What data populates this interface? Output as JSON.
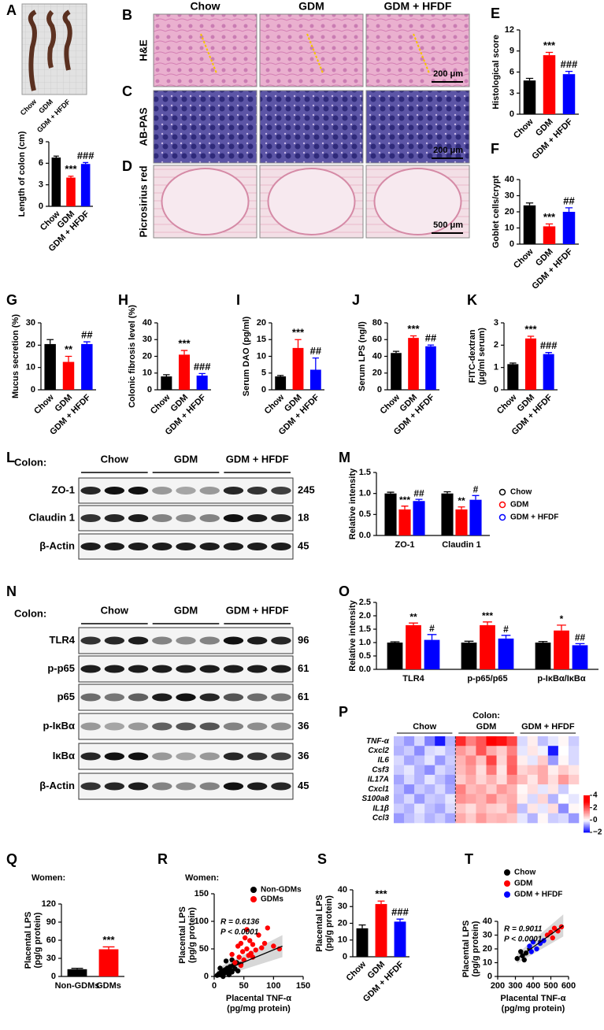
{
  "colon_photo": {
    "letter": "A",
    "labels": [
      "Chow",
      "GDM",
      "GDM + HFDF"
    ]
  },
  "histology": {
    "letters": [
      "B",
      "C",
      "D"
    ],
    "columns": [
      "Chow",
      "GDM",
      "GDM + HFDF"
    ],
    "rows": [
      "H&E",
      "AB-PAS",
      "Picrosirius red"
    ],
    "scale_bars": [
      "200 μm",
      "200 μm",
      "500 μm"
    ]
  },
  "blots": [
    {
      "letter": "L",
      "tissue": "Colon:",
      "groups": [
        "Chow",
        "GDM",
        "GDM + HFDF"
      ],
      "proteins": [
        "ZO-1",
        "Claudin 1",
        "β-Actin"
      ],
      "kda": [
        245,
        18,
        45
      ]
    },
    {
      "letter": "N",
      "tissue": "Colon:",
      "groups": [
        "Chow",
        "GDM",
        "GDM + HFDF"
      ],
      "proteins": [
        "TLR4",
        "p-p65",
        "p65",
        "p-IκBα",
        "IκBα",
        "β-Actin"
      ],
      "kda": [
        96,
        61,
        61,
        36,
        36,
        45
      ]
    }
  ],
  "chart_data": [
    {
      "type": "bar",
      "ylabel": "Length of colon (cm)",
      "categories": [
        "Chow",
        "GDM",
        "GDM + HFDF"
      ],
      "values": [
        6.8,
        4.0,
        5.9
      ],
      "errors": [
        0.2,
        0.2,
        0.2
      ],
      "colors": [
        "#000000",
        "#ff0000",
        "#0000ff"
      ],
      "annotations": [
        null,
        "***",
        "###"
      ],
      "ylim": [
        0,
        9
      ],
      "yticks": [
        0,
        3,
        6,
        9
      ]
    },
    {
      "type": "bar",
      "letter": "E",
      "ylabel": "Histological score",
      "categories": [
        "Chow",
        "GDM",
        "GDM + HFDF"
      ],
      "values": [
        4.8,
        8.4,
        5.7
      ],
      "errors": [
        0.3,
        0.4,
        0.4
      ],
      "colors": [
        "#000000",
        "#ff0000",
        "#0000ff"
      ],
      "annotations": [
        null,
        "***",
        "###"
      ],
      "ylim": [
        0,
        12
      ],
      "yticks": [
        0,
        3,
        6,
        9,
        12
      ]
    },
    {
      "type": "bar",
      "letter": "F",
      "ylabel": "Goblet cells/crypt",
      "categories": [
        "Chow",
        "GDM",
        "GDM + HFDF"
      ],
      "values": [
        24,
        11,
        20
      ],
      "errors": [
        1.5,
        1.5,
        2.5
      ],
      "colors": [
        "#000000",
        "#ff0000",
        "#0000ff"
      ],
      "annotations": [
        null,
        "***",
        "##"
      ],
      "ylim": [
        0,
        40
      ],
      "yticks": [
        0,
        10,
        20,
        30,
        40
      ]
    },
    {
      "type": "bar",
      "letter": "G",
      "ylabel": "Mucus secretion (%)",
      "categories": [
        "Chow",
        "GDM",
        "GDM + HFDF"
      ],
      "values": [
        20.5,
        12.5,
        20.5
      ],
      "errors": [
        2,
        2.5,
        1
      ],
      "colors": [
        "#000000",
        "#ff0000",
        "#0000ff"
      ],
      "annotations": [
        null,
        "**",
        "##"
      ],
      "ylim": [
        0,
        30
      ],
      "yticks": [
        0,
        10,
        20,
        30
      ]
    },
    {
      "type": "bar",
      "letter": "H",
      "ylabel": "Colonic fibrosis level (%)",
      "categories": [
        "Chow",
        "GDM",
        "GDM + HFDF"
      ],
      "values": [
        8,
        21,
        8.5
      ],
      "errors": [
        1,
        2.5,
        1.2
      ],
      "colors": [
        "#000000",
        "#ff0000",
        "#0000ff"
      ],
      "annotations": [
        null,
        "***",
        "###"
      ],
      "ylim": [
        0,
        40
      ],
      "yticks": [
        0,
        10,
        20,
        30,
        40
      ]
    },
    {
      "type": "bar",
      "letter": "I",
      "ylabel": "Serum DAO (pg/ml)",
      "categories": [
        "Chow",
        "GDM",
        "GDM + HFDF"
      ],
      "values": [
        4,
        12.5,
        6
      ],
      "errors": [
        0.3,
        2.5,
        3.5
      ],
      "colors": [
        "#000000",
        "#ff0000",
        "#0000ff"
      ],
      "annotations": [
        null,
        "***",
        "##"
      ],
      "ylim": [
        0,
        20
      ],
      "yticks": [
        0,
        5,
        10,
        15,
        20
      ]
    },
    {
      "type": "bar",
      "letter": "J",
      "ylabel": "Serum LPS (ng/l)",
      "categories": [
        "Chow",
        "GDM",
        "GDM + HFDF"
      ],
      "values": [
        44,
        62,
        52
      ],
      "errors": [
        2,
        2.5,
        1.5
      ],
      "colors": [
        "#000000",
        "#ff0000",
        "#0000ff"
      ],
      "annotations": [
        null,
        "***",
        "##"
      ],
      "ylim": [
        0,
        80
      ],
      "yticks": [
        0,
        20,
        40,
        60,
        80
      ]
    },
    {
      "type": "bar",
      "letter": "K",
      "ylabel": [
        "FITC-dextran",
        "(μg/ml serum)"
      ],
      "categories": [
        "Chow",
        "GDM",
        "GDM + HFDF"
      ],
      "values": [
        1.15,
        2.3,
        1.6
      ],
      "errors": [
        0.05,
        0.1,
        0.07
      ],
      "colors": [
        "#000000",
        "#ff0000",
        "#0000ff"
      ],
      "annotations": [
        null,
        "***",
        "###"
      ],
      "ylim": [
        0,
        3
      ],
      "yticks": [
        0,
        1,
        2,
        3
      ]
    },
    {
      "type": "grouped_bar",
      "letter": "M",
      "ylabel": "Relative intensity",
      "categories": [
        "ZO-1",
        "Claudin 1"
      ],
      "series": [
        {
          "name": "Chow",
          "color": "#000000",
          "values": [
            1.0,
            1.0
          ],
          "errors": [
            0.03,
            0.04
          ]
        },
        {
          "name": "GDM",
          "color": "#ff0000",
          "values": [
            0.62,
            0.62
          ],
          "errors": [
            0.08,
            0.06
          ],
          "annotations": [
            "***",
            "**"
          ]
        },
        {
          "name": "GDM + HFDF",
          "color": "#0000ff",
          "values": [
            0.82,
            0.85
          ],
          "errors": [
            0.04,
            0.1
          ],
          "annotations": [
            "##",
            "#"
          ]
        }
      ],
      "ylim": [
        0,
        1.5
      ],
      "yticks": [
        {
          "value": 0,
          "label": "0.0"
        },
        {
          "value": 0.5,
          "label": "0.5"
        },
        {
          "value": 1,
          "label": "1.0"
        },
        {
          "value": 1.5,
          "label": "1.5"
        }
      ],
      "legend": "right"
    },
    {
      "type": "grouped_bar",
      "letter": "O",
      "ylabel": "Relative intensity",
      "categories": [
        "TLR4",
        "p-p65/p65",
        "p-IκBα/IκBα"
      ],
      "series": [
        {
          "name": "Chow",
          "color": "#000000",
          "values": [
            1.0,
            1.0,
            1.0
          ],
          "errors": [
            0.03,
            0.05,
            0.04
          ]
        },
        {
          "name": "GDM",
          "color": "#ff0000",
          "values": [
            1.65,
            1.65,
            1.45
          ],
          "errors": [
            0.08,
            0.12,
            0.2
          ],
          "annotations": [
            "**",
            "***",
            "*"
          ]
        },
        {
          "name": "GDM + HFDF",
          "color": "#0000ff",
          "values": [
            1.1,
            1.15,
            0.9
          ],
          "errors": [
            0.2,
            0.12,
            0.06
          ],
          "annotations": [
            "#",
            "#",
            "##"
          ]
        }
      ],
      "ylim": [
        0,
        2.5
      ],
      "yticks": [
        {
          "value": 0,
          "label": "0.0"
        },
        {
          "value": 0.5,
          "label": "0.5"
        },
        {
          "value": 1,
          "label": "1.0"
        },
        {
          "value": 1.5,
          "label": "1.5"
        },
        {
          "value": 2,
          "label": "2.0"
        },
        {
          "value": 2.5,
          "label": "2.5"
        }
      ]
    },
    {
      "type": "heatmap",
      "letter": "P",
      "tissue": "Colon:",
      "groups": [
        "Chow",
        "GDM",
        "GDM + HFDF"
      ],
      "rows": [
        "TNF-α",
        "Cxcl2",
        "IL6",
        "Csf3",
        "IL17A",
        "Cxcl1",
        "S100a8",
        "IL1β",
        "Ccl3"
      ],
      "values": [
        [
          -0.5,
          -0.8,
          -0.3,
          -1.0,
          -1.8,
          -0.6,
          2.5,
          1.5,
          2.0,
          3.5,
          2.8,
          2.2,
          -0.3,
          0.2,
          -0.5,
          -0.2,
          0.1,
          -0.4
        ],
        [
          -0.6,
          -0.4,
          -0.9,
          -0.3,
          -0.2,
          -0.5,
          1.2,
          0.8,
          2.0,
          1.0,
          0.6,
          1.5,
          -0.2,
          0.3,
          -0.1,
          -1.8,
          0.0,
          -0.3
        ],
        [
          -0.3,
          -0.7,
          -0.5,
          -0.2,
          -0.8,
          -0.4,
          0.9,
          1.4,
          0.7,
          2.2,
          0.5,
          1.8,
          0.2,
          -0.2,
          0.6,
          -0.8,
          0.1,
          -0.3
        ],
        [
          -0.4,
          -0.2,
          -0.6,
          -0.9,
          -0.3,
          -0.5,
          0.8,
          1.2,
          0.4,
          1.6,
          0.3,
          1.9,
          0.5,
          0.7,
          1.0,
          0.2,
          0.6,
          0.3
        ],
        [
          -0.7,
          -0.3,
          -0.6,
          -0.2,
          -0.5,
          -0.8,
          0.6,
          1.0,
          0.5,
          0.9,
          0.4,
          1.3,
          0.8,
          0.3,
          1.0,
          0.4,
          1.2,
          0.6
        ],
        [
          -0.5,
          -0.9,
          -0.4,
          -0.6,
          -0.3,
          -0.7,
          1.5,
          0.8,
          1.0,
          0.6,
          1.2,
          0.9,
          0.1,
          0.4,
          -0.2,
          0.3,
          -0.4,
          0.0
        ],
        [
          -0.6,
          -0.3,
          -0.8,
          -0.4,
          -0.5,
          -0.2,
          1.3,
          1.1,
          0.9,
          1.4,
          0.8,
          1.0,
          0.2,
          -0.3,
          0.5,
          -0.6,
          0.0,
          -0.2
        ],
        [
          -0.4,
          -0.6,
          -0.2,
          -0.5,
          -0.7,
          -0.3,
          0.7,
          0.4,
          0.9,
          0.6,
          0.5,
          1.1,
          -0.5,
          0.3,
          -0.2,
          0.4,
          -0.9,
          0.1
        ],
        [
          -0.8,
          -0.5,
          -0.3,
          -0.6,
          -0.4,
          -0.7,
          1.0,
          0.6,
          1.2,
          0.8,
          0.9,
          0.7,
          -0.2,
          -0.6,
          0.1,
          -0.4,
          -0.3,
          -0.8
        ]
      ],
      "clim": [
        -2,
        4
      ],
      "cticks": [
        4,
        2,
        0,
        {
          "value": -2,
          "label": "−2"
        }
      ]
    },
    {
      "type": "bar",
      "letter": "Q",
      "subtitle": "Women:",
      "ylabel": [
        "Placental LPS",
        "(pg/g protein)"
      ],
      "categories": [
        "Non-GDMs",
        "GDMs"
      ],
      "values": [
        12,
        45
      ],
      "errors": [
        1.5,
        4
      ],
      "colors": [
        "#000000",
        "#ff0000"
      ],
      "annotations": [
        null,
        "***"
      ],
      "ylim": [
        0,
        120
      ],
      "yticks": [
        0,
        30,
        60,
        90,
        120
      ]
    },
    {
      "type": "scatter",
      "letter": "R",
      "subtitle": "Women:",
      "ylabel": [
        "Placental LPS",
        "(pg/g protein)"
      ],
      "xlabel": [
        "Placental TNF-α",
        "(pg/mg protein)"
      ],
      "series": [
        {
          "name": "Non-GDMs",
          "color": "#000000",
          "x": [
            5,
            8,
            10,
            12,
            14,
            15,
            17,
            18,
            20,
            22,
            24,
            25,
            27,
            28,
            30,
            32,
            35,
            38,
            40,
            45,
            10,
            15,
            20,
            25,
            30
          ],
          "y": [
            2,
            5,
            3,
            8,
            4,
            10,
            6,
            12,
            7,
            15,
            9,
            5,
            18,
            11,
            8,
            20,
            14,
            25,
            10,
            22,
            15,
            0,
            28,
            3,
            30
          ]
        },
        {
          "name": "GDMs",
          "color": "#ff0000",
          "x": [
            30,
            35,
            40,
            42,
            45,
            48,
            50,
            52,
            55,
            58,
            60,
            62,
            65,
            70,
            75,
            80,
            85,
            90,
            100,
            110,
            45,
            55,
            65
          ],
          "y": [
            40,
            25,
            55,
            35,
            60,
            45,
            30,
            70,
            50,
            38,
            65,
            42,
            58,
            48,
            75,
            52,
            60,
            88,
            55,
            50,
            20,
            85,
            35
          ]
        }
      ],
      "fit": {
        "x": [
          5,
          115
        ],
        "y": [
          6,
          55
        ]
      },
      "stats": [
        "R = 0.6136",
        "P < 0.0001"
      ],
      "xlim": [
        0,
        150
      ],
      "xticks": [
        0,
        50,
        100,
        150
      ],
      "ylim": [
        0,
        150
      ],
      "yticks": [
        0,
        50,
        100,
        150
      ],
      "legend": "top-right"
    },
    {
      "type": "bar",
      "letter": "S",
      "ylabel": [
        "Placental LPS",
        "(pg/g protein)"
      ],
      "categories": [
        "Chow",
        "GDM",
        "GDM + HFDF"
      ],
      "values": [
        17,
        31.5,
        21
      ],
      "errors": [
        2,
        1.8,
        1.5
      ],
      "colors": [
        "#000000",
        "#ff0000",
        "#0000ff"
      ],
      "annotations": [
        null,
        "***",
        "###"
      ],
      "ylim": [
        0,
        40
      ],
      "yticks": [
        0,
        10,
        20,
        30,
        40
      ]
    },
    {
      "type": "scatter",
      "letter": "T",
      "ylabel": [
        "Placental LPS",
        "(pg/g protein)"
      ],
      "xlabel": [
        "Placental TNF-α",
        "(pg/mg protein)"
      ],
      "series": [
        {
          "name": "Chow",
          "color": "#000000",
          "x": [
            310,
            330,
            340,
            350,
            360,
            380
          ],
          "y": [
            13,
            18,
            15,
            12,
            17,
            20
          ]
        },
        {
          "name": "GDM",
          "color": "#ff0000",
          "x": [
            480,
            500,
            510,
            520,
            540,
            560
          ],
          "y": [
            30,
            32,
            28,
            35,
            33,
            36
          ]
        },
        {
          "name": "GDM + HFDF",
          "color": "#0000ff",
          "x": [
            380,
            390,
            400,
            420,
            440,
            460
          ],
          "y": [
            22,
            18,
            25,
            20,
            24,
            26
          ]
        }
      ],
      "fit": {
        "x": [
          310,
          570
        ],
        "y": [
          13,
          37
        ]
      },
      "stats": [
        "R = 0.9011",
        "P < 0.0001"
      ],
      "xlim": [
        200,
        600
      ],
      "xticks": [
        200,
        300,
        400,
        500,
        600
      ],
      "ylim": [
        0,
        40
      ],
      "yticks": [
        0,
        10,
        20,
        30,
        40
      ],
      "legend": "top"
    }
  ]
}
